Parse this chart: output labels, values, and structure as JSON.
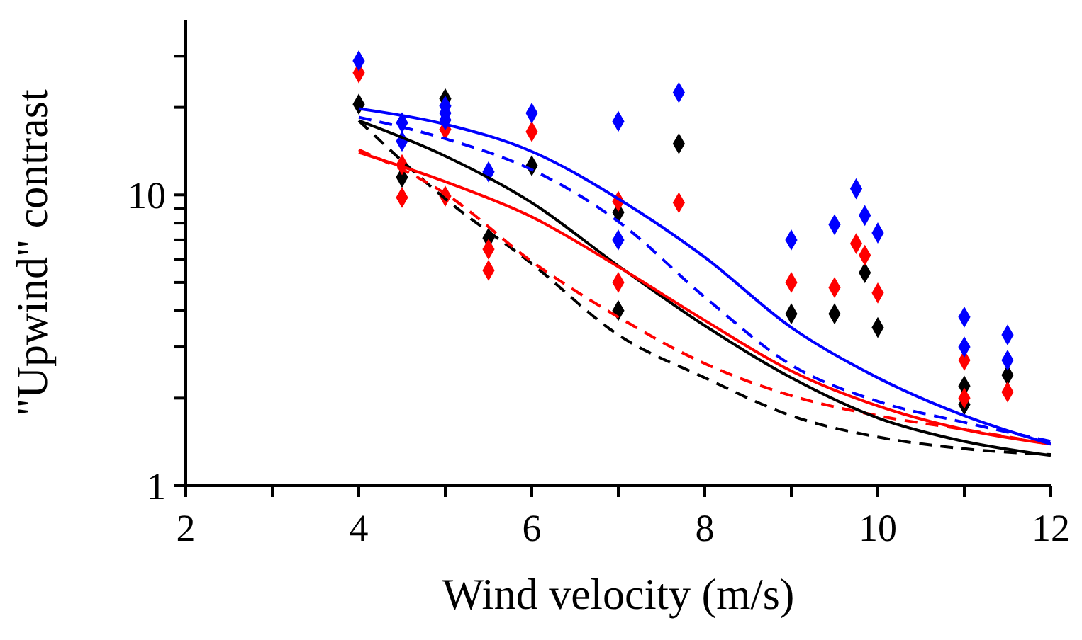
{
  "chart_data": {
    "type": "scatter",
    "xlabel": "Wind velocity (m/s)",
    "ylabel": "\"Upwind\" contrast",
    "log": "y",
    "marker": "diamond",
    "xlim": [
      2,
      12
    ],
    "ylim": [
      1,
      40
    ],
    "xticks": [
      2,
      {
        "value": 3,
        "label": null
      },
      4,
      {
        "value": 5,
        "label": null
      },
      6,
      {
        "value": 7,
        "label": null
      },
      8,
      {
        "value": 9,
        "label": null
      },
      10,
      {
        "value": 11,
        "label": null
      },
      12
    ],
    "yticks": [
      1,
      {
        "value": 2,
        "label": null
      },
      {
        "value": 3,
        "label": null
      },
      {
        "value": 4,
        "label": null
      },
      {
        "value": 5,
        "label": null
      },
      {
        "value": 6,
        "label": null
      },
      {
        "value": 7,
        "label": null
      },
      {
        "value": 8,
        "label": null
      },
      {
        "value": 9,
        "label": null
      },
      10,
      {
        "value": 20,
        "label": null
      },
      {
        "value": 30,
        "label": null
      }
    ],
    "series": [
      {
        "type": "scatter",
        "color": "#000000",
        "x": [
          4,
          4.5,
          5,
          5.5,
          6,
          7,
          7,
          7.7,
          9,
          9.5,
          9.85,
          10,
          11,
          11,
          11.5
        ],
        "values": [
          20.5,
          11.5,
          21.4,
          7.1,
          12.6,
          8.7,
          4,
          15,
          3.9,
          3.9,
          5.4,
          3.5,
          2.2,
          1.9,
          2.4
        ]
      },
      {
        "type": "scatter",
        "color": "#ff0000",
        "x": [
          4,
          4.5,
          4.5,
          5,
          5,
          5.5,
          5.5,
          6,
          7,
          7,
          7.7,
          9,
          9.5,
          9.75,
          9.85,
          10,
          11,
          11,
          11.5
        ],
        "values": [
          26.3,
          12.7,
          9.8,
          16.8,
          9.9,
          6.5,
          5.5,
          16.5,
          9.5,
          5,
          9.4,
          5,
          4.8,
          6.8,
          6.2,
          4.6,
          2.7,
          2,
          2.1
        ]
      },
      {
        "type": "scatter",
        "color": "#0000ff",
        "x": [
          4,
          4.5,
          4.5,
          5,
          5,
          5,
          5.5,
          6,
          7,
          7,
          7.7,
          9,
          9.5,
          9.75,
          9.85,
          10,
          11,
          11,
          11.5,
          11.5
        ],
        "values": [
          28.9,
          17.7,
          15.3,
          20.2,
          19.1,
          18.1,
          12,
          19.1,
          17.9,
          7,
          22.5,
          7,
          7.9,
          10.5,
          8.5,
          7.4,
          3.8,
          3,
          3.3,
          2.7
        ]
      },
      {
        "type": "line",
        "color": "#000000",
        "line_style": "dashed",
        "marker": "none",
        "x": [
          4,
          5,
          6,
          7,
          8,
          9,
          10,
          11,
          12
        ],
        "values": [
          18,
          9.7,
          5.8,
          3.3,
          2.35,
          1.74,
          1.47,
          1.34,
          1.28
        ]
      },
      {
        "type": "line",
        "color": "#ff0000",
        "line_style": "dashed",
        "marker": "none",
        "x": [
          4,
          5,
          6,
          7,
          8,
          9,
          10,
          11,
          12
        ],
        "values": [
          14.3,
          10.1,
          5.9,
          3.8,
          2.63,
          2.04,
          1.74,
          1.56,
          1.39
        ]
      },
      {
        "type": "line",
        "color": "#0000ff",
        "line_style": "dashed",
        "marker": "none",
        "x": [
          4,
          5,
          6,
          7,
          8,
          9,
          10,
          11,
          12
        ],
        "values": [
          18.5,
          15.6,
          12.2,
          8.1,
          4.45,
          2.6,
          1.95,
          1.65,
          1.42
        ]
      },
      {
        "type": "line",
        "color": "#000000",
        "line_style": "solid",
        "marker": "none",
        "x": [
          4,
          5,
          6,
          7,
          8,
          9,
          10,
          11,
          12
        ],
        "values": [
          18,
          13.6,
          9.4,
          5.7,
          3.55,
          2.35,
          1.71,
          1.42,
          1.27
        ]
      },
      {
        "type": "line",
        "color": "#ff0000",
        "line_style": "solid",
        "marker": "none",
        "x": [
          4,
          5,
          6,
          7,
          8,
          9,
          10,
          11,
          12
        ],
        "values": [
          14,
          11.1,
          8.4,
          5.66,
          3.7,
          2.48,
          1.88,
          1.56,
          1.39
        ]
      },
      {
        "type": "line",
        "color": "#0000ff",
        "line_style": "solid",
        "marker": "none",
        "x": [
          4,
          5,
          6,
          7,
          8,
          9,
          10,
          11,
          12
        ],
        "values": [
          19.8,
          17.5,
          14.1,
          9.7,
          6.1,
          3.5,
          2.35,
          1.74,
          1.39
        ]
      }
    ]
  }
}
